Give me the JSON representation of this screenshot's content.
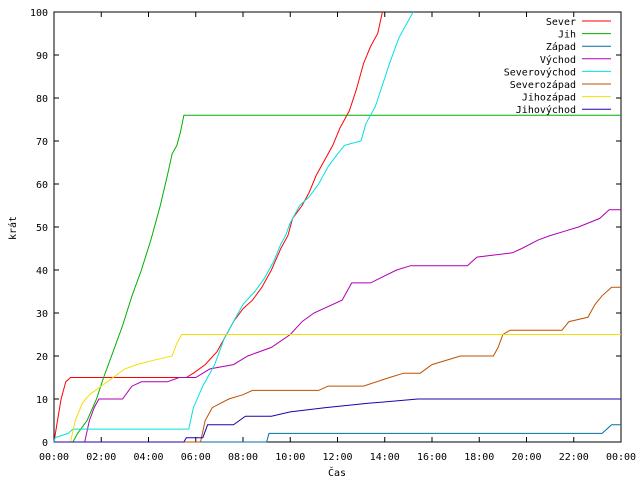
{
  "chart_data": {
    "type": "line",
    "xlabel": "Čas",
    "ylabel": "krát",
    "xlim": [
      0,
      24
    ],
    "ylim": [
      0,
      100
    ],
    "grid": false,
    "legend_position": "top-right",
    "x_ticks": [
      {
        "value": 0,
        "label": "00:00"
      },
      {
        "value": 2,
        "label": "02:00"
      },
      {
        "value": 4,
        "label": "04:00"
      },
      {
        "value": 6,
        "label": "06:00"
      },
      {
        "value": 8,
        "label": "08:00"
      },
      {
        "value": 10,
        "label": "10:00"
      },
      {
        "value": 12,
        "label": "12:00"
      },
      {
        "value": 14,
        "label": "14:00"
      },
      {
        "value": 16,
        "label": "16:00"
      },
      {
        "value": 18,
        "label": "18:00"
      },
      {
        "value": 20,
        "label": "20:00"
      },
      {
        "value": 22,
        "label": "22:00"
      },
      {
        "value": 24,
        "label": "00:00"
      }
    ],
    "y_ticks": [
      0,
      10,
      20,
      30,
      40,
      50,
      60,
      70,
      80,
      90,
      100
    ],
    "series": [
      {
        "name": "Sever",
        "color": "#ff0000",
        "points": [
          [
            0,
            0
          ],
          [
            0.15,
            5
          ],
          [
            0.3,
            10
          ],
          [
            0.5,
            14
          ],
          [
            0.7,
            15
          ],
          [
            5.6,
            15
          ],
          [
            5.9,
            16
          ],
          [
            6.4,
            18
          ],
          [
            6.9,
            21
          ],
          [
            7.3,
            25
          ],
          [
            7.6,
            28
          ],
          [
            8.0,
            31
          ],
          [
            8.4,
            33
          ],
          [
            8.8,
            36
          ],
          [
            9.2,
            40
          ],
          [
            9.6,
            45
          ],
          [
            9.9,
            48
          ],
          [
            10.1,
            52
          ],
          [
            10.5,
            55
          ],
          [
            10.8,
            58
          ],
          [
            11.1,
            62
          ],
          [
            11.4,
            65
          ],
          [
            11.8,
            69
          ],
          [
            12.1,
            73
          ],
          [
            12.5,
            77
          ],
          [
            12.8,
            82
          ],
          [
            13.1,
            88
          ],
          [
            13.4,
            92
          ],
          [
            13.7,
            95
          ],
          [
            13.9,
            100
          ]
        ]
      },
      {
        "name": "Jih",
        "color": "#00b000",
        "points": [
          [
            0,
            0
          ],
          [
            0.8,
            0
          ],
          [
            1.0,
            2
          ],
          [
            1.4,
            5
          ],
          [
            1.8,
            10
          ],
          [
            2.1,
            15
          ],
          [
            2.5,
            21
          ],
          [
            2.9,
            27
          ],
          [
            3.3,
            34
          ],
          [
            3.7,
            40
          ],
          [
            4.1,
            47
          ],
          [
            4.5,
            55
          ],
          [
            4.8,
            62
          ],
          [
            5.0,
            67
          ],
          [
            5.2,
            69
          ],
          [
            5.35,
            72
          ],
          [
            5.5,
            76
          ],
          [
            24,
            76
          ]
        ]
      },
      {
        "name": "Západ",
        "color": "#0070a0",
        "points": [
          [
            0,
            0
          ],
          [
            9.0,
            0
          ],
          [
            9.1,
            2
          ],
          [
            23.2,
            2
          ],
          [
            23.4,
            3
          ],
          [
            23.6,
            4
          ],
          [
            24,
            4
          ]
        ]
      },
      {
        "name": "Východ",
        "color": "#b000b0",
        "points": [
          [
            0,
            0
          ],
          [
            1.3,
            0
          ],
          [
            1.5,
            5
          ],
          [
            1.7,
            8
          ],
          [
            1.9,
            10
          ],
          [
            2.9,
            10
          ],
          [
            3.3,
            13
          ],
          [
            3.7,
            14
          ],
          [
            4.8,
            14
          ],
          [
            5.3,
            15
          ],
          [
            6.0,
            15
          ],
          [
            6.6,
            17
          ],
          [
            7.6,
            18
          ],
          [
            8.2,
            20
          ],
          [
            9.2,
            22
          ],
          [
            10.0,
            25
          ],
          [
            10.5,
            28
          ],
          [
            11.0,
            30
          ],
          [
            12.2,
            33
          ],
          [
            12.6,
            37
          ],
          [
            13.4,
            37
          ],
          [
            14.5,
            40
          ],
          [
            15.1,
            41
          ],
          [
            17.5,
            41
          ],
          [
            17.9,
            43
          ],
          [
            19.4,
            44
          ],
          [
            19.8,
            45
          ],
          [
            20.5,
            47
          ],
          [
            21.0,
            48
          ],
          [
            21.6,
            49
          ],
          [
            22.2,
            50
          ],
          [
            23.1,
            52
          ],
          [
            23.5,
            54
          ],
          [
            24,
            54
          ]
        ]
      },
      {
        "name": "Severovýchod",
        "color": "#00e0e0",
        "points": [
          [
            0,
            0
          ],
          [
            0.05,
            1
          ],
          [
            0.6,
            2
          ],
          [
            0.8,
            3
          ],
          [
            5.7,
            3
          ],
          [
            5.9,
            8
          ],
          [
            6.3,
            13
          ],
          [
            6.8,
            18
          ],
          [
            7.2,
            24
          ],
          [
            7.6,
            28
          ],
          [
            8.0,
            32
          ],
          [
            8.5,
            35
          ],
          [
            8.9,
            38
          ],
          [
            9.3,
            42
          ],
          [
            9.6,
            46
          ],
          [
            9.8,
            48
          ],
          [
            10.0,
            51
          ],
          [
            10.4,
            55
          ],
          [
            10.8,
            57
          ],
          [
            11.2,
            60
          ],
          [
            11.6,
            64
          ],
          [
            12.0,
            67
          ],
          [
            12.3,
            69
          ],
          [
            13.0,
            70
          ],
          [
            13.2,
            74
          ],
          [
            13.6,
            78
          ],
          [
            13.9,
            83
          ],
          [
            14.2,
            88
          ],
          [
            14.6,
            94
          ],
          [
            15.0,
            98
          ],
          [
            15.2,
            100
          ]
        ]
      },
      {
        "name": "Severozápad",
        "color": "#c05000",
        "points": [
          [
            0,
            0
          ],
          [
            6.2,
            0
          ],
          [
            6.4,
            5
          ],
          [
            6.7,
            8
          ],
          [
            7.4,
            10
          ],
          [
            8.0,
            11
          ],
          [
            8.4,
            12
          ],
          [
            11.2,
            12
          ],
          [
            11.6,
            13
          ],
          [
            13.1,
            13
          ],
          [
            14.2,
            15
          ],
          [
            14.8,
            16
          ],
          [
            15.5,
            16
          ],
          [
            16.0,
            18
          ],
          [
            17.2,
            20
          ],
          [
            18.6,
            20
          ],
          [
            18.8,
            22
          ],
          [
            19.0,
            25
          ],
          [
            19.3,
            26
          ],
          [
            21.5,
            26
          ],
          [
            21.8,
            28
          ],
          [
            22.6,
            29
          ],
          [
            22.9,
            32
          ],
          [
            23.2,
            34
          ],
          [
            23.6,
            36
          ],
          [
            24,
            36
          ]
        ]
      },
      {
        "name": "Jihozápad",
        "color": "#f0e000",
        "points": [
          [
            0,
            0
          ],
          [
            0.7,
            0
          ],
          [
            0.9,
            5
          ],
          [
            1.2,
            9
          ],
          [
            1.5,
            11
          ],
          [
            2.0,
            13
          ],
          [
            2.5,
            15
          ],
          [
            3.0,
            17
          ],
          [
            3.5,
            18
          ],
          [
            4.2,
            19
          ],
          [
            5.0,
            20
          ],
          [
            5.2,
            23
          ],
          [
            5.4,
            25
          ],
          [
            24,
            25
          ]
        ]
      },
      {
        "name": "Jihovýchod",
        "color": "#2000b0",
        "points": [
          [
            0,
            0
          ],
          [
            5.5,
            0
          ],
          [
            5.6,
            1
          ],
          [
            6.3,
            1
          ],
          [
            6.5,
            4
          ],
          [
            7.6,
            4
          ],
          [
            8.1,
            6
          ],
          [
            9.2,
            6
          ],
          [
            10.0,
            7
          ],
          [
            11.5,
            8
          ],
          [
            13.3,
            9
          ],
          [
            15.4,
            10
          ],
          [
            24,
            10
          ]
        ]
      }
    ]
  }
}
